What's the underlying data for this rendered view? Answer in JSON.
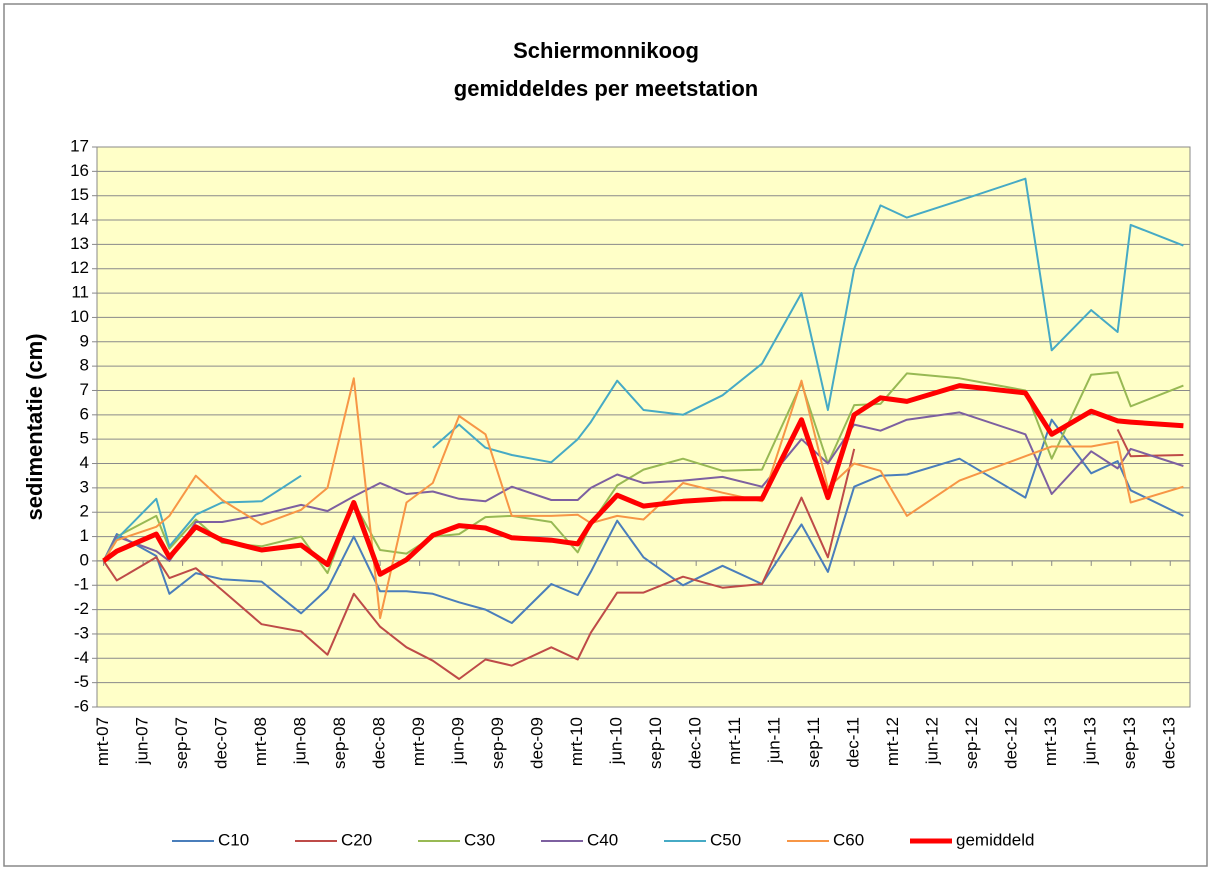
{
  "chart_data": {
    "type": "line",
    "title": "Schiermonnikoog",
    "subtitle": "gemiddeldes per meetstation",
    "ylabel": "sedimentatie (cm)",
    "x": [
      "2007-03",
      "2007-04",
      "2007-07",
      "2007-08",
      "2007-10",
      "2007-12",
      "2008-03",
      "2008-06",
      "2008-08",
      "2008-10",
      "2008-12",
      "2009-02",
      "2009-04",
      "2009-06",
      "2009-08",
      "2009-10",
      "2010-01",
      "2010-03",
      "2010-04",
      "2010-06",
      "2010-08",
      "2010-11",
      "2011-02",
      "2011-05",
      "2011-08",
      "2011-10",
      "2011-12",
      "2012-02",
      "2012-04",
      "2012-08",
      "2013-01",
      "2013-03",
      "2013-06",
      "2013-08",
      "2013-09",
      "2014-01"
    ],
    "xlim": [
      "2007-03",
      "2014-01"
    ],
    "xticks": [
      {
        "value": "2007-03",
        "label": "mrt-07"
      },
      {
        "value": "2007-06",
        "label": "jun-07"
      },
      {
        "value": "2007-09",
        "label": "sep-07"
      },
      {
        "value": "2007-12",
        "label": "dec-07"
      },
      {
        "value": "2008-03",
        "label": "mrt-08"
      },
      {
        "value": "2008-06",
        "label": "jun-08"
      },
      {
        "value": "2008-09",
        "label": "sep-08"
      },
      {
        "value": "2008-12",
        "label": "dec-08"
      },
      {
        "value": "2009-03",
        "label": "mrt-09"
      },
      {
        "value": "2009-06",
        "label": "jun-09"
      },
      {
        "value": "2009-09",
        "label": "sep-09"
      },
      {
        "value": "2009-12",
        "label": "dec-09"
      },
      {
        "value": "2010-03",
        "label": "mrt-10"
      },
      {
        "value": "2010-06",
        "label": "jun-10"
      },
      {
        "value": "2010-09",
        "label": "sep-10"
      },
      {
        "value": "2010-12",
        "label": "dec-10"
      },
      {
        "value": "2011-03",
        "label": "mrt-11"
      },
      {
        "value": "2011-06",
        "label": "jun-11"
      },
      {
        "value": "2011-09",
        "label": "sep-11"
      },
      {
        "value": "2011-12",
        "label": "dec-11"
      },
      {
        "value": "2012-03",
        "label": "mrt-12"
      },
      {
        "value": "2012-06",
        "label": "jun-12"
      },
      {
        "value": "2012-09",
        "label": "sep-12"
      },
      {
        "value": "2012-12",
        "label": "dec-12"
      },
      {
        "value": "2013-03",
        "label": "mrt-13"
      },
      {
        "value": "2013-06",
        "label": "jun-13"
      },
      {
        "value": "2013-09",
        "label": "sep-13"
      },
      {
        "value": "2013-12",
        "label": "dec-13"
      }
    ],
    "ylim": [
      -6,
      17
    ],
    "yticks": [
      -6,
      -5,
      -4,
      -3,
      -2,
      -1,
      0,
      1,
      2,
      3,
      4,
      5,
      6,
      7,
      8,
      9,
      10,
      11,
      12,
      13,
      14,
      15,
      16,
      17
    ],
    "grid": true,
    "background": "#ffffc8",
    "legend": "bottom",
    "series": [
      {
        "name": "C10",
        "color": "#4a7ebb",
        "values": [
          0,
          1.1,
          0.2,
          -1.35,
          -0.5,
          -0.75,
          -0.85,
          -2.15,
          -1.15,
          1.0,
          -1.25,
          -1.25,
          -1.35,
          -1.7,
          -2.0,
          -2.55,
          -0.95,
          -1.4,
          -0.45,
          1.65,
          0.15,
          -1.0,
          -0.2,
          -0.95,
          1.5,
          -0.45,
          3.05,
          3.5,
          3.55,
          4.2,
          2.6,
          5.8,
          3.6,
          4.1,
          2.9,
          1.85
        ]
      },
      {
        "name": "C20",
        "color": "#be4b48",
        "values": [
          0,
          -0.8,
          0.15,
          -0.7,
          -0.3,
          -1.2,
          -2.6,
          -2.9,
          -3.85,
          -1.35,
          -2.7,
          -3.55,
          -4.1,
          -4.85,
          -4.05,
          -4.3,
          -3.55,
          -4.05,
          -2.95,
          -1.3,
          -1.3,
          -0.65,
          -1.1,
          -0.95,
          2.6,
          0.15,
          4.6,
          null,
          null,
          null,
          null,
          null,
          null,
          5.4,
          4.3,
          4.35
        ]
      },
      {
        "name": "C30",
        "color": "#98b954",
        "values": [
          0,
          1.0,
          1.85,
          0.5,
          1.7,
          0.75,
          0.6,
          1.0,
          -0.5,
          2.4,
          0.45,
          0.3,
          1.0,
          1.1,
          1.8,
          1.85,
          1.6,
          0.35,
          1.5,
          3.1,
          3.75,
          4.2,
          3.7,
          3.75,
          7.3,
          4.0,
          6.4,
          6.45,
          7.7,
          7.5,
          7.0,
          4.2,
          7.65,
          7.75,
          6.35,
          7.2
        ]
      },
      {
        "name": "C40",
        "color": "#7d60a0",
        "values": [
          0,
          1.0,
          0.4,
          0,
          1.6,
          1.6,
          1.9,
          2.3,
          2.05,
          2.65,
          3.2,
          2.75,
          2.85,
          2.55,
          2.45,
          3.05,
          2.5,
          2.5,
          3.0,
          3.55,
          3.2,
          3.3,
          3.45,
          3.05,
          5.0,
          4.0,
          5.6,
          5.35,
          5.8,
          6.1,
          5.2,
          2.75,
          4.5,
          3.8,
          4.6,
          3.9
        ]
      },
      {
        "name": "C50",
        "color": "#46aac5",
        "values": [
          0,
          0.9,
          2.55,
          0.6,
          1.9,
          2.4,
          2.45,
          3.5,
          null,
          null,
          null,
          null,
          4.65,
          5.6,
          4.65,
          4.35,
          4.05,
          5.0,
          5.7,
          7.4,
          6.2,
          6.0,
          6.8,
          8.1,
          11.0,
          6.2,
          12.0,
          14.6,
          14.1,
          14.8,
          15.7,
          8.65,
          10.3,
          9.4,
          13.8,
          12.95
        ]
      },
      {
        "name": "C60",
        "color": "#f79646",
        "values": [
          0,
          0.85,
          1.4,
          1.85,
          3.5,
          2.5,
          1.5,
          2.1,
          3.0,
          7.5,
          -2.35,
          2.4,
          3.2,
          5.95,
          5.2,
          1.85,
          1.85,
          1.9,
          1.55,
          1.85,
          1.7,
          3.2,
          2.8,
          2.45,
          7.4,
          3.0,
          4.0,
          3.7,
          1.85,
          3.3,
          4.3,
          4.7,
          4.7,
          4.9,
          2.4,
          3.05
        ]
      },
      {
        "name": "gemiddeld",
        "color": "#ff0000",
        "line_width": 5,
        "values": [
          0,
          0.4,
          1.1,
          0.15,
          1.4,
          0.85,
          0.45,
          0.65,
          -0.15,
          2.4,
          -0.55,
          0.05,
          1.05,
          1.45,
          1.35,
          0.95,
          0.85,
          0.7,
          1.55,
          2.7,
          2.25,
          2.45,
          2.55,
          2.55,
          5.8,
          2.6,
          6.0,
          6.7,
          6.55,
          7.2,
          6.9,
          5.2,
          6.15,
          5.75,
          5.7,
          5.55
        ]
      }
    ]
  }
}
